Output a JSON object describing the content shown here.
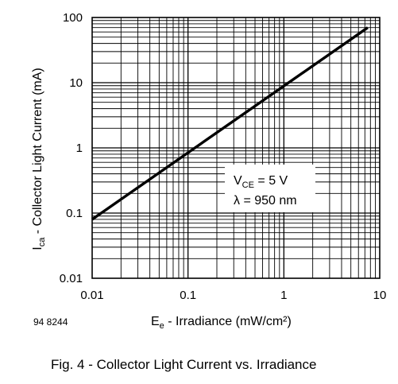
{
  "figure_code": "94 8244",
  "caption": "Fig. 4 - Collector Light Current vs. Irradiance",
  "annotation": {
    "line1": {
      "main": "V",
      "sub": "CE",
      "rest": " = 5 V"
    },
    "line2": "λ = 950 nm"
  },
  "chart_data": {
    "type": "line",
    "scale": {
      "x": "log",
      "y": "log"
    },
    "grid": true,
    "xlim": [
      0.01,
      10
    ],
    "ylim": [
      0.01,
      100
    ],
    "x_ticks": [
      "0.01",
      "0.1",
      "1",
      "10"
    ],
    "y_ticks": [
      "0.01",
      "0.1",
      "1",
      "10",
      "100"
    ],
    "xlabel": {
      "main": "E",
      "sub": "e",
      "rest": " - Irradiance (mW/cm²)"
    },
    "ylabel": {
      "main": "I",
      "sub": "ca",
      "rest": " - Collector Light Current (mA)"
    },
    "series": [
      {
        "x": [
          0.01,
          7.5
        ],
        "y": [
          0.08,
          70
        ]
      }
    ]
  }
}
